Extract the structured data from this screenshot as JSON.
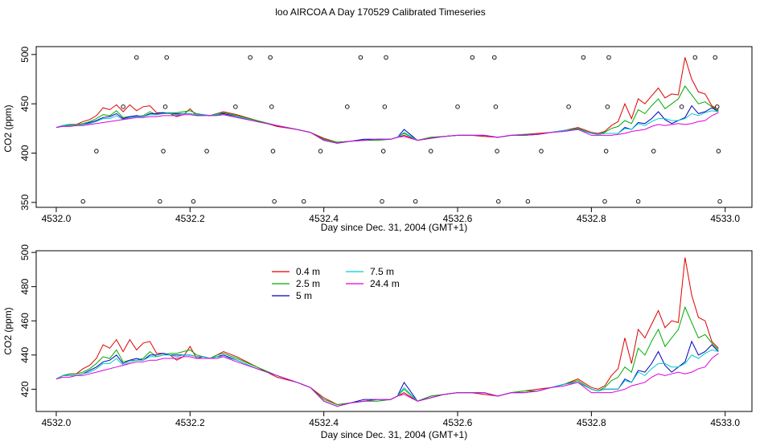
{
  "title": "loo AIRCOA A  Day 170529  Calibrated Timeseries",
  "colors": {
    "0.4 m": "#dd0000",
    "2.5 m": "#00aa00",
    "5 m": "#0000bb",
    "7.5 m": "#00cccc",
    "24.4 m": "#dd00dd",
    "points": "#000000",
    "axis": "#000000"
  },
  "chart_data": [
    {
      "type": "scatter+line",
      "xlabel": "Day since Dec. 31, 2004 (GMT+1)",
      "ylabel": "CO2 (ppm)",
      "xlim": [
        4531.97,
        4533.04
      ],
      "ylim": [
        345,
        508
      ],
      "xticks": [
        "4532.0",
        "4532.2",
        "4532.4",
        "4532.6",
        "4532.8",
        "4533.0"
      ],
      "yticks": [
        "350",
        "400",
        "450",
        "500"
      ],
      "grid": false,
      "legend": "none",
      "scatter_points": [
        {
          "x": 4532.04,
          "y": 351
        },
        {
          "x": 4532.06,
          "y": 402
        },
        {
          "x": 4532.1,
          "y": 447
        },
        {
          "x": 4532.12,
          "y": 497
        },
        {
          "x": 4532.155,
          "y": 351
        },
        {
          "x": 4532.16,
          "y": 402
        },
        {
          "x": 4532.163,
          "y": 447
        },
        {
          "x": 4532.165,
          "y": 497
        },
        {
          "x": 4532.205,
          "y": 351
        },
        {
          "x": 4532.225,
          "y": 402
        },
        {
          "x": 4532.268,
          "y": 447
        },
        {
          "x": 4532.29,
          "y": 497
        },
        {
          "x": 4532.32,
          "y": 497
        },
        {
          "x": 4532.322,
          "y": 447
        },
        {
          "x": 4532.324,
          "y": 402
        },
        {
          "x": 4532.326,
          "y": 351
        },
        {
          "x": 4532.37,
          "y": 351
        },
        {
          "x": 4532.395,
          "y": 402
        },
        {
          "x": 4532.435,
          "y": 447
        },
        {
          "x": 4532.455,
          "y": 497
        },
        {
          "x": 4532.487,
          "y": 351
        },
        {
          "x": 4532.489,
          "y": 402
        },
        {
          "x": 4532.491,
          "y": 447
        },
        {
          "x": 4532.493,
          "y": 497
        },
        {
          "x": 4532.537,
          "y": 351
        },
        {
          "x": 4532.56,
          "y": 402
        },
        {
          "x": 4532.6,
          "y": 447
        },
        {
          "x": 4532.622,
          "y": 497
        },
        {
          "x": 4532.655,
          "y": 497
        },
        {
          "x": 4532.657,
          "y": 447
        },
        {
          "x": 4532.659,
          "y": 402
        },
        {
          "x": 4532.661,
          "y": 351
        },
        {
          "x": 4532.705,
          "y": 351
        },
        {
          "x": 4532.725,
          "y": 402
        },
        {
          "x": 4532.766,
          "y": 447
        },
        {
          "x": 4532.788,
          "y": 497
        },
        {
          "x": 4532.82,
          "y": 351
        },
        {
          "x": 4532.822,
          "y": 402
        },
        {
          "x": 4532.824,
          "y": 447
        },
        {
          "x": 4532.826,
          "y": 497
        },
        {
          "x": 4532.87,
          "y": 351
        },
        {
          "x": 4532.893,
          "y": 402
        },
        {
          "x": 4532.935,
          "y": 447
        },
        {
          "x": 4532.955,
          "y": 497
        },
        {
          "x": 4532.985,
          "y": 497
        },
        {
          "x": 4532.988,
          "y": 447
        },
        {
          "x": 4532.99,
          "y": 402
        },
        {
          "x": 4532.992,
          "y": 351
        }
      ],
      "series": [
        {
          "name": "0.4 m",
          "x": [
            4532.0,
            4532.01,
            4532.02,
            4532.03,
            4532.04,
            4532.05,
            4532.06,
            4532.07,
            4532.08,
            4532.09,
            4532.1,
            4532.11,
            4532.12,
            4532.13,
            4532.14,
            4532.15,
            4532.16,
            4532.17,
            4532.18,
            4532.19,
            4532.2,
            4532.21,
            4532.22,
            4532.23,
            4532.24,
            4532.25,
            4532.27,
            4532.3,
            4532.33,
            4532.36,
            4532.38,
            4532.4,
            4532.42,
            4532.44,
            4532.46,
            4532.48,
            4532.5,
            4532.51,
            4532.52,
            4532.54,
            4532.56,
            4532.58,
            4532.6,
            4532.62,
            4532.64,
            4532.66,
            4532.68,
            4532.7,
            4532.72,
            4532.74,
            4532.76,
            4532.78,
            4532.8,
            4532.81,
            4532.82,
            4532.83,
            4532.84,
            4532.85,
            4532.86,
            4532.87,
            4532.88,
            4532.89,
            4532.9,
            4532.91,
            4532.92,
            4532.93,
            4532.94,
            4532.95,
            4532.96,
            4532.97,
            4532.98,
            4532.99
          ],
          "y": [
            426,
            428,
            429,
            429,
            432,
            434,
            438,
            446,
            444,
            449,
            442,
            449,
            443,
            447,
            448,
            441,
            441,
            440,
            437,
            439,
            445,
            438,
            439,
            438,
            440,
            442,
            439,
            433,
            427,
            424,
            421,
            415,
            411,
            412,
            413,
            414,
            414,
            416,
            418,
            413,
            416,
            417,
            418,
            418,
            417,
            416,
            418,
            419,
            420,
            421,
            423,
            426,
            421,
            420,
            422,
            428,
            432,
            450,
            435,
            455,
            450,
            458,
            466,
            456,
            460,
            459,
            497,
            475,
            462,
            460,
            448,
            444
          ]
        },
        {
          "name": "2.5 m",
          "x": [
            4532.0,
            4532.01,
            4532.02,
            4532.03,
            4532.04,
            4532.05,
            4532.06,
            4532.07,
            4532.08,
            4532.09,
            4532.1,
            4532.11,
            4532.12,
            4532.13,
            4532.14,
            4532.15,
            4532.16,
            4532.17,
            4532.18,
            4532.19,
            4532.2,
            4532.21,
            4532.22,
            4532.23,
            4532.24,
            4532.25,
            4532.27,
            4532.3,
            4532.33,
            4532.36,
            4532.38,
            4532.4,
            4532.42,
            4532.44,
            4532.46,
            4532.48,
            4532.5,
            4532.51,
            4532.52,
            4532.54,
            4532.56,
            4532.58,
            4532.6,
            4532.62,
            4532.64,
            4532.66,
            4532.68,
            4532.7,
            4532.72,
            4532.74,
            4532.76,
            4532.78,
            4532.8,
            4532.81,
            4532.82,
            4532.83,
            4532.84,
            4532.85,
            4532.86,
            4532.87,
            4532.88,
            4532.89,
            4532.9,
            4532.91,
            4532.92,
            4532.93,
            4532.94,
            4532.95,
            4532.96,
            4532.97,
            4532.98,
            4532.99
          ],
          "y": [
            426,
            428,
            429,
            429,
            430,
            432,
            435,
            439,
            438,
            443,
            436,
            437,
            437,
            438,
            442,
            439,
            440,
            441,
            441,
            442,
            443,
            440,
            439,
            438,
            440,
            441,
            438,
            433,
            428,
            424,
            421,
            414,
            411,
            412,
            413,
            413,
            414,
            416,
            420,
            413,
            416,
            417,
            418,
            418,
            418,
            416,
            418,
            419,
            419,
            421,
            423,
            425,
            420,
            419,
            421,
            425,
            427,
            433,
            430,
            444,
            440,
            448,
            455,
            445,
            450,
            455,
            468,
            459,
            450,
            452,
            447,
            443
          ]
        },
        {
          "name": "5 m",
          "x": [
            4532.0,
            4532.01,
            4532.02,
            4532.03,
            4532.04,
            4532.05,
            4532.06,
            4532.07,
            4532.08,
            4532.09,
            4532.1,
            4532.11,
            4532.12,
            4532.13,
            4532.14,
            4532.15,
            4532.16,
            4532.17,
            4532.18,
            4532.19,
            4532.2,
            4532.21,
            4532.22,
            4532.23,
            4532.24,
            4532.25,
            4532.27,
            4532.3,
            4532.33,
            4532.36,
            4532.38,
            4532.4,
            4532.42,
            4532.44,
            4532.46,
            4532.48,
            4532.5,
            4532.51,
            4532.52,
            4532.54,
            4532.56,
            4532.58,
            4532.6,
            4532.62,
            4532.64,
            4532.66,
            4532.68,
            4532.7,
            4532.72,
            4532.74,
            4532.76,
            4532.78,
            4532.8,
            4532.81,
            4532.82,
            4532.83,
            4532.84,
            4532.85,
            4532.86,
            4532.87,
            4532.88,
            4532.89,
            4532.9,
            4532.91,
            4532.92,
            4532.93,
            4532.94,
            4532.95,
            4532.96,
            4532.97,
            4532.98,
            4532.99
          ],
          "y": [
            426,
            428,
            428,
            428,
            429,
            431,
            433,
            436,
            437,
            440,
            435,
            437,
            438,
            437,
            440,
            440,
            441,
            440,
            440,
            440,
            440,
            439,
            439,
            438,
            439,
            440,
            437,
            432,
            428,
            424,
            421,
            413,
            410,
            412,
            414,
            414,
            414,
            416,
            424,
            413,
            415,
            417,
            418,
            418,
            418,
            416,
            418,
            418,
            419,
            421,
            423,
            424,
            420,
            419,
            420,
            420,
            420,
            426,
            424,
            431,
            430,
            435,
            442,
            434,
            430,
            433,
            436,
            448,
            440,
            442,
            446,
            442
          ]
        },
        {
          "name": "7.5 m",
          "x": [
            4532.0,
            4532.01,
            4532.02,
            4532.03,
            4532.04,
            4532.05,
            4532.06,
            4532.07,
            4532.08,
            4532.09,
            4532.1,
            4532.11,
            4532.12,
            4532.13,
            4532.14,
            4532.15,
            4532.16,
            4532.17,
            4532.18,
            4532.19,
            4532.2,
            4532.21,
            4532.22,
            4532.23,
            4532.24,
            4532.25,
            4532.27,
            4532.3,
            4532.33,
            4532.36,
            4532.38,
            4532.4,
            4532.42,
            4532.44,
            4532.46,
            4532.48,
            4532.5,
            4532.51,
            4532.52,
            4532.54,
            4532.56,
            4532.58,
            4532.6,
            4532.62,
            4532.64,
            4532.66,
            4532.68,
            4532.7,
            4532.72,
            4532.74,
            4532.76,
            4532.78,
            4532.8,
            4532.81,
            4532.82,
            4532.83,
            4532.84,
            4532.85,
            4532.86,
            4532.87,
            4532.88,
            4532.89,
            4532.9,
            4532.91,
            4532.92,
            4532.93,
            4532.94,
            4532.95,
            4532.96,
            4532.97,
            4532.98,
            4532.99
          ],
          "y": [
            426,
            428,
            428,
            428,
            429,
            430,
            432,
            435,
            435,
            438,
            434,
            436,
            437,
            437,
            439,
            439,
            440,
            440,
            439,
            440,
            440,
            439,
            439,
            438,
            439,
            439,
            437,
            432,
            428,
            424,
            421,
            413,
            410,
            412,
            413,
            414,
            414,
            416,
            421,
            413,
            415,
            417,
            418,
            418,
            418,
            416,
            418,
            418,
            419,
            421,
            423,
            424,
            420,
            419,
            420,
            420,
            420,
            425,
            424,
            430,
            428,
            432,
            435,
            435,
            433,
            433,
            435,
            440,
            438,
            441,
            443,
            442
          ]
        },
        {
          "name": "24.4 m",
          "x": [
            4532.0,
            4532.01,
            4532.02,
            4532.03,
            4532.04,
            4532.05,
            4532.06,
            4532.07,
            4532.08,
            4532.09,
            4532.1,
            4532.11,
            4532.12,
            4532.13,
            4532.14,
            4532.15,
            4532.16,
            4532.17,
            4532.18,
            4532.19,
            4532.2,
            4532.21,
            4532.22,
            4532.23,
            4532.24,
            4532.25,
            4532.27,
            4532.3,
            4532.33,
            4532.36,
            4532.38,
            4532.4,
            4532.42,
            4532.44,
            4532.46,
            4532.48,
            4532.5,
            4532.51,
            4532.52,
            4532.54,
            4532.56,
            4532.58,
            4532.6,
            4532.62,
            4532.64,
            4532.66,
            4532.68,
            4532.7,
            4532.72,
            4532.74,
            4532.76,
            4532.78,
            4532.8,
            4532.81,
            4532.82,
            4532.83,
            4532.84,
            4532.85,
            4532.86,
            4532.87,
            4532.88,
            4532.89,
            4532.9,
            4532.91,
            4532.92,
            4532.93,
            4532.94,
            4532.95,
            4532.96,
            4532.97,
            4532.98,
            4532.99
          ],
          "y": [
            426,
            427,
            427,
            428,
            428,
            429,
            430,
            431,
            432,
            433,
            434,
            435,
            436,
            436,
            437,
            437,
            438,
            438,
            438,
            439,
            439,
            438,
            438,
            438,
            438,
            439,
            436,
            432,
            428,
            424,
            421,
            413,
            410,
            412,
            413,
            414,
            414,
            416,
            417,
            413,
            415,
            417,
            418,
            418,
            418,
            416,
            418,
            418,
            419,
            421,
            422,
            424,
            418,
            418,
            418,
            418,
            419,
            420,
            422,
            423,
            424,
            427,
            429,
            428,
            429,
            430,
            429,
            430,
            432,
            433,
            438,
            441
          ]
        }
      ]
    },
    {
      "type": "line",
      "xlabel": "Day since Dec. 31, 2004 (GMT+1)",
      "ylabel": "CO2 (ppm)",
      "xlim": [
        4531.97,
        4533.04
      ],
      "ylim": [
        407,
        501
      ],
      "xticks": [
        "4532.0",
        "4532.2",
        "4532.4",
        "4532.6",
        "4532.8",
        "4533.0"
      ],
      "yticks": [
        "420",
        "440",
        "460",
        "480",
        "500"
      ],
      "grid": false,
      "legend": "top-left",
      "legend_entries": [
        "0.4 m",
        "2.5 m",
        "5 m",
        "7.5 m",
        "24.4 m"
      ],
      "series_ref": "same as panel 1 series"
    }
  ]
}
